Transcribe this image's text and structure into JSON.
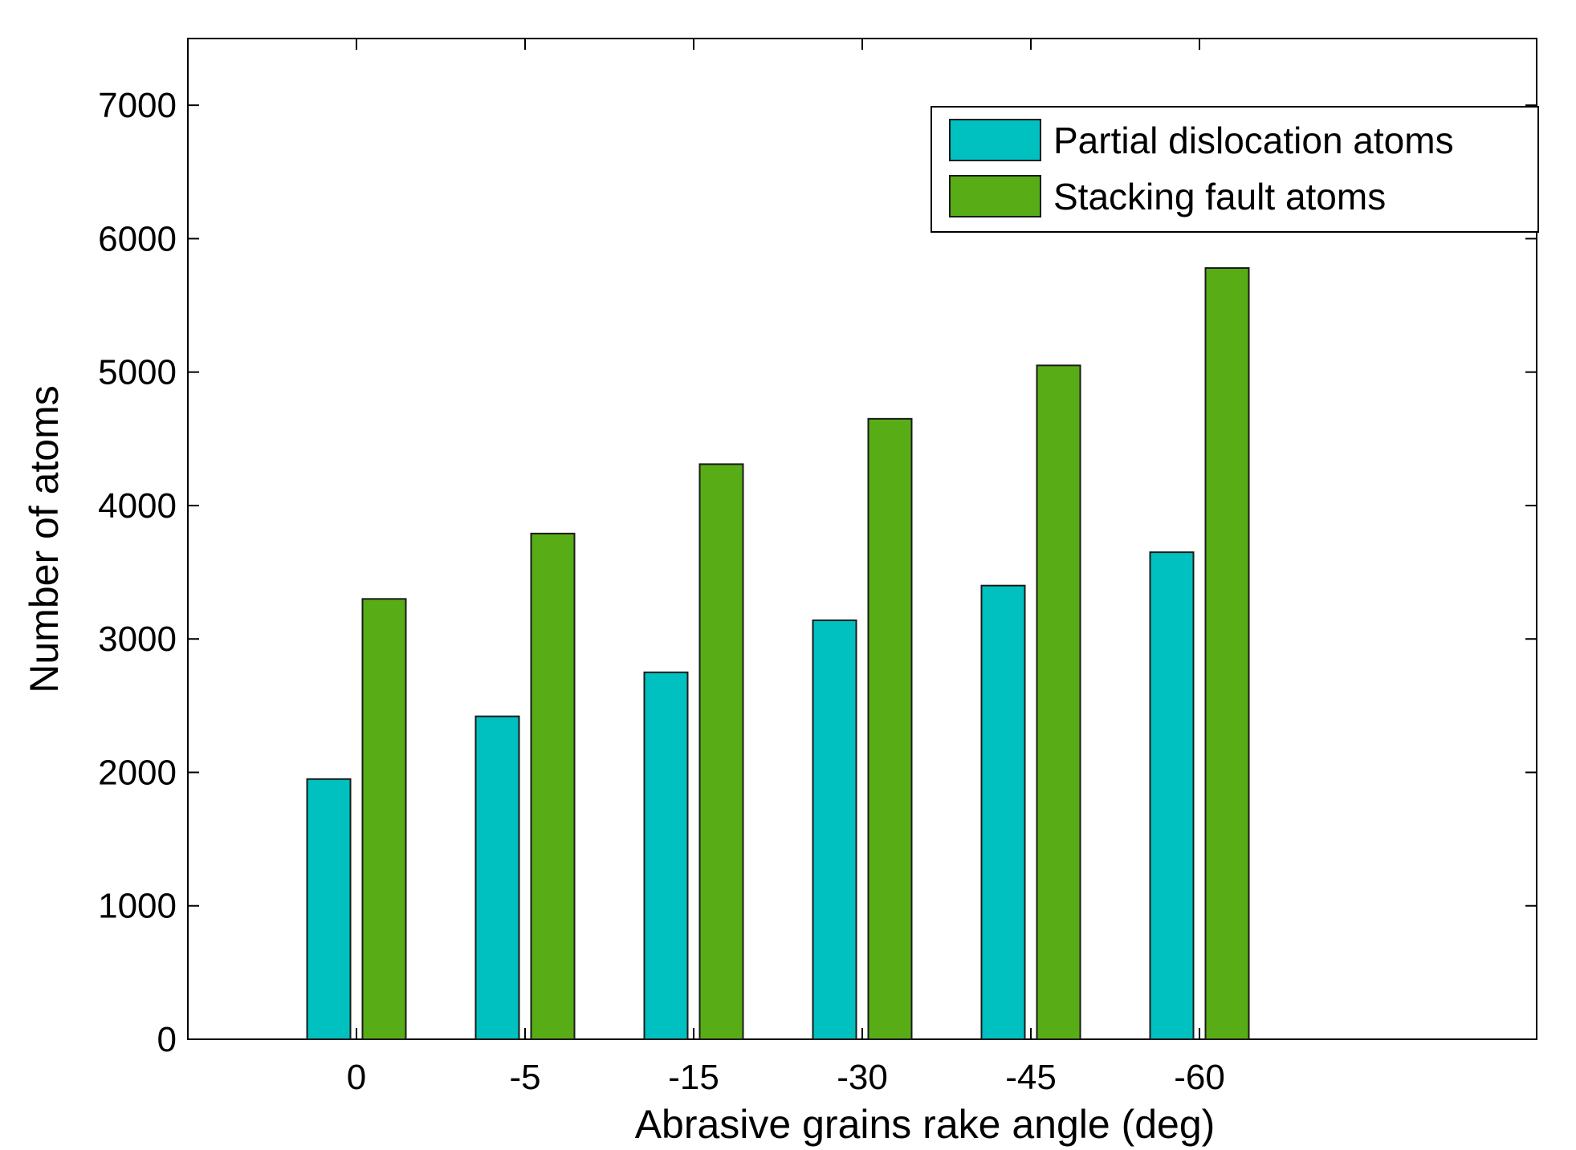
{
  "chart_data": {
    "type": "bar",
    "title": "",
    "xlabel": "Abrasive grains rake angle (deg)",
    "ylabel": "Number of atoms",
    "categories": [
      "0",
      "-5",
      "-15",
      "-30",
      "-45",
      "-60"
    ],
    "series": [
      {
        "name": "Partial dislocation atoms",
        "color": "#00c0c0",
        "values": [
          1950,
          2420,
          2750,
          3140,
          3400,
          3650
        ]
      },
      {
        "name": "Stacking fault atoms",
        "color": "#58ad17",
        "values": [
          3300,
          3790,
          4310,
          4650,
          5050,
          5780
        ]
      }
    ],
    "ylim": [
      0,
      7500
    ],
    "yticks": [
      0,
      1000,
      2000,
      3000,
      4000,
      5000,
      6000,
      7000
    ],
    "ytick_labels": [
      "0",
      "1000",
      "2000",
      "3000",
      "4000",
      "5000",
      "6000",
      "7000"
    ],
    "grid": false,
    "legend_position": "top-right"
  }
}
